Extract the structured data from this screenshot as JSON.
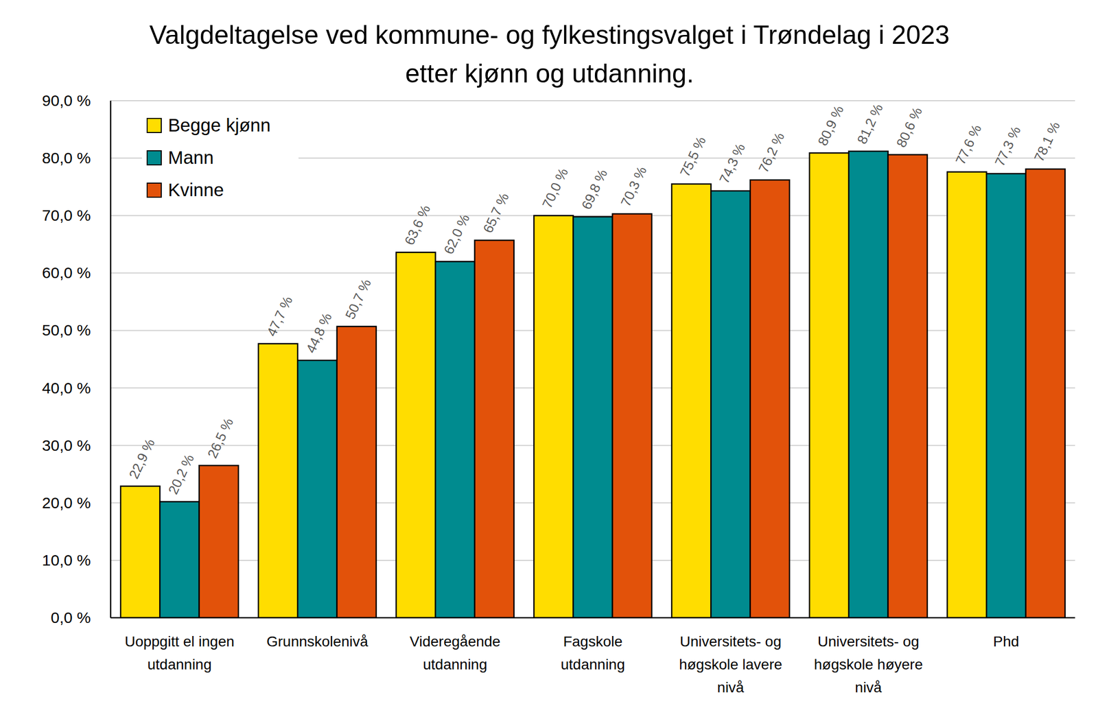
{
  "chart_data": {
    "type": "bar",
    "title": "Valgdeltagelse ved kommune- og fylkestingsvalget i Trøndelag i 2023 etter kjønn og utdanning.",
    "categories": [
      "Uoppgitt el ingen utdanning",
      "Grunnskolenivå",
      "Videregående utdanning",
      "Fagskole utdanning",
      "Universitets- og høgskole lavere nivå",
      "Universitets- og høgskole høyere nivå",
      "Phd"
    ],
    "series": [
      {
        "name": "Begge kjønn",
        "color": "#ffdd00",
        "values": [
          22.9,
          47.7,
          63.6,
          70.0,
          75.5,
          80.9,
          77.6
        ],
        "value_labels": [
          "22,9 %",
          "47,7 %",
          "63,6 %",
          "70,0 %",
          "75,5 %",
          "80,9 %",
          "77,6 %"
        ]
      },
      {
        "name": "Mann",
        "color": "#008b8f",
        "values": [
          20.2,
          44.8,
          62.0,
          69.8,
          74.3,
          81.2,
          77.3
        ],
        "value_labels": [
          "20,2 %",
          "44,8 %",
          "62,0 %",
          "69,8 %",
          "74,3 %",
          "81,2 %",
          "77,3 %"
        ]
      },
      {
        "name": "Kvinne",
        "color": "#e2520a",
        "values": [
          26.5,
          50.7,
          65.7,
          70.3,
          76.2,
          80.6,
          78.1
        ],
        "value_labels": [
          "26,5 %",
          "50,7 %",
          "65,7 %",
          "70,3 %",
          "76,2 %",
          "80,6 %",
          "78,1 %"
        ]
      }
    ],
    "ylim": [
      0,
      90
    ],
    "yticks": [
      {
        "value": 0,
        "label": "0,0 %"
      },
      {
        "value": 10,
        "label": "10,0 %"
      },
      {
        "value": 20,
        "label": "20,0 %"
      },
      {
        "value": 30,
        "label": "30,0 %"
      },
      {
        "value": 40,
        "label": "40,0 %"
      },
      {
        "value": 50,
        "label": "50,0 %"
      },
      {
        "value": 60,
        "label": "60,0 %"
      },
      {
        "value": 70,
        "label": "70,0 %"
      },
      {
        "value": 80,
        "label": "80,0 %"
      },
      {
        "value": 90,
        "label": "90,0 %"
      }
    ],
    "grid": true,
    "legend": "upper left",
    "data_labels": true
  }
}
